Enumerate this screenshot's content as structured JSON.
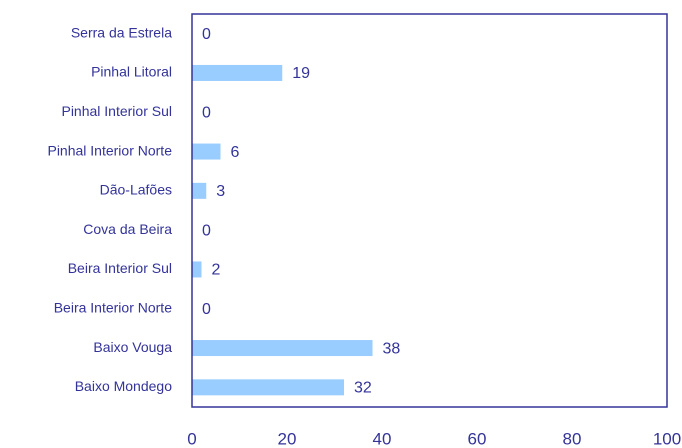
{
  "chart_data": {
    "type": "barh",
    "categories": [
      "Serra da Estrela",
      "Pinhal Litoral",
      "Pinhal Interior Sul",
      "Pinhal Interior Norte",
      "Dão-Lafões",
      "Cova da Beira",
      "Beira Interior Sul",
      "Beira Interior Norte",
      "Baixo Vouga",
      "Baixo Mondego"
    ],
    "values": [
      0,
      19,
      0,
      6,
      3,
      0,
      2,
      0,
      38,
      32
    ],
    "color": "#99ccff",
    "xlim": [
      0,
      100
    ],
    "xticks": [
      0,
      20,
      40,
      60,
      80,
      100
    ],
    "grid": false
  }
}
